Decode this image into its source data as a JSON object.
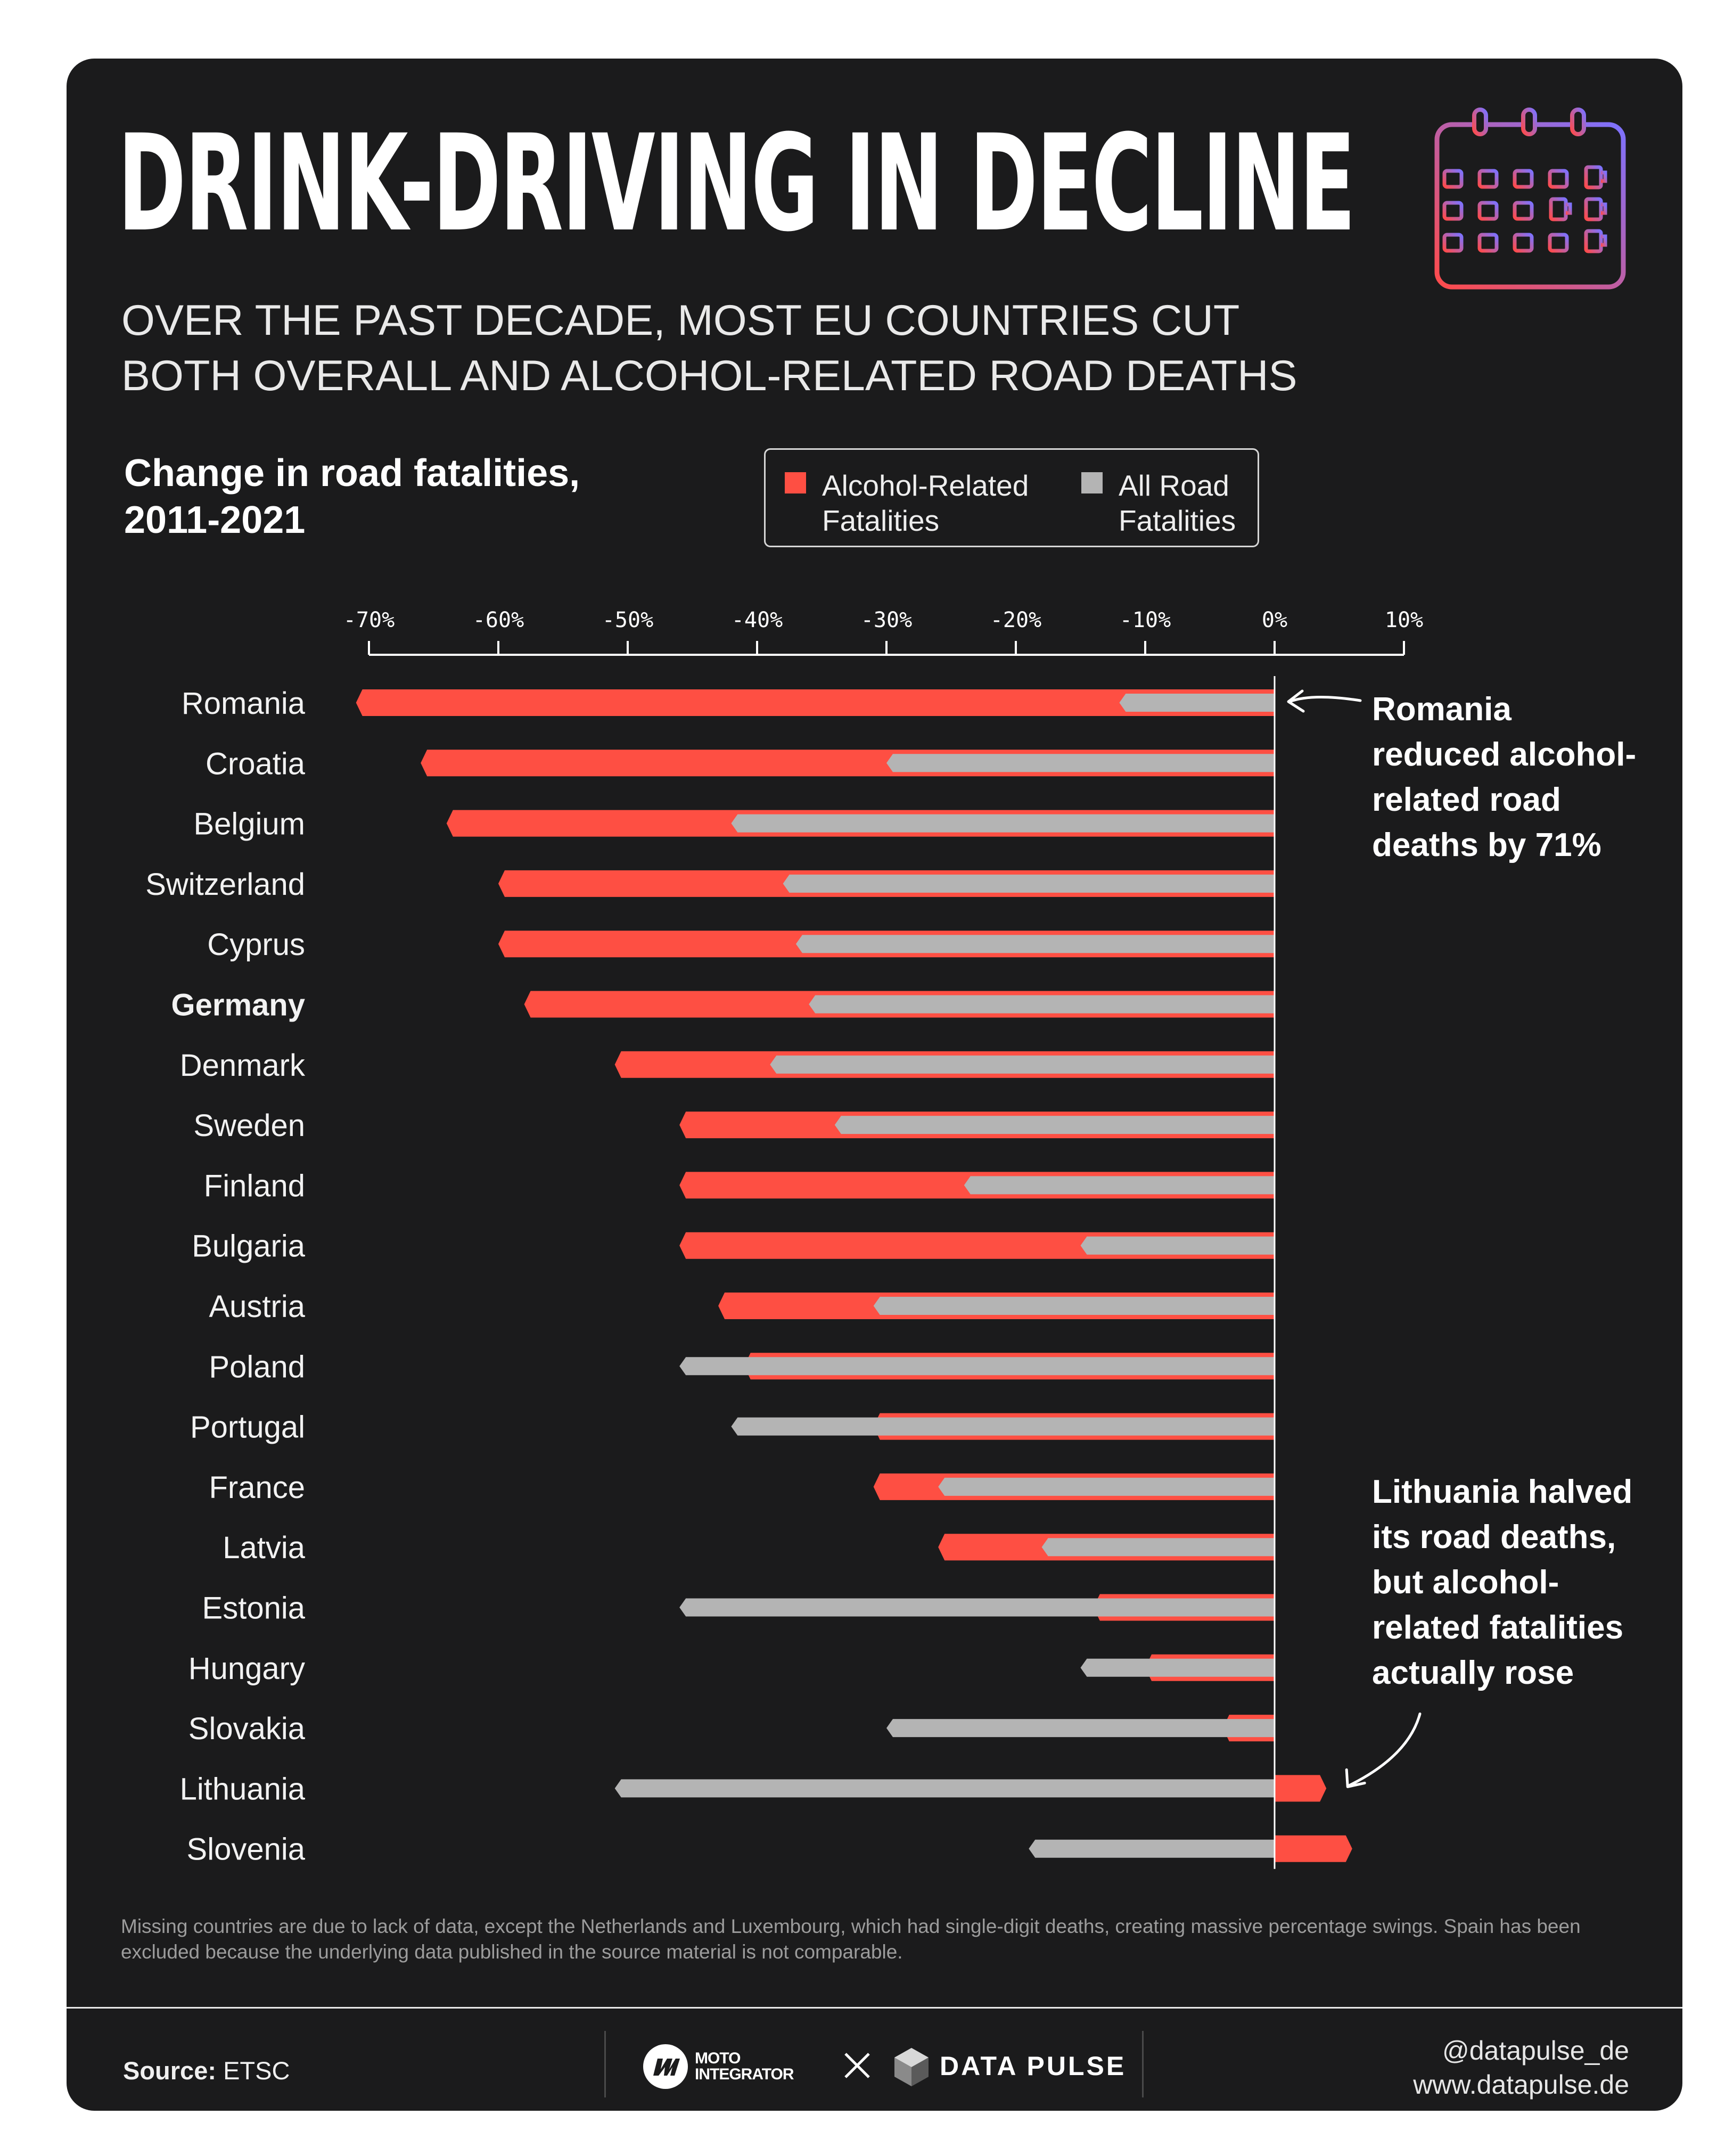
{
  "header": {
    "title": "DRINK-DRIVING IN DECLINE",
    "subtitle_line1": "OVER THE PAST DECADE, MOST EU COUNTRIES CUT",
    "subtitle_line2": "BOTH OVERALL AND ALCOHOL-RELATED ROAD DEATHS",
    "icon": "calendar-beer-icon"
  },
  "chart_title": {
    "line1": "Change in road fatalities,",
    "line2": "2011-2021"
  },
  "legend": {
    "alcohol": {
      "line1": "Alcohol-Related",
      "line2": "Fatalities",
      "color": "#fe4f43"
    },
    "all": {
      "line1": "All Road",
      "line2": "Fatalities",
      "color": "#b4b4b4"
    }
  },
  "chart_data": {
    "type": "bar",
    "orientation": "horizontal",
    "x_range": [
      -70,
      10
    ],
    "x_ticks": [
      "-70%",
      "-60%",
      "-50%",
      "-40%",
      "-30%",
      "-20%",
      "-10%",
      "0%",
      "10%"
    ],
    "x_tick_values": [
      -70,
      -60,
      -50,
      -40,
      -30,
      -20,
      -10,
      0,
      10
    ],
    "unit": "%",
    "emphasized_category": "Germany",
    "categories": [
      "Romania",
      "Croatia",
      "Belgium",
      "Switzerland",
      "Cyprus",
      "Germany",
      "Denmark",
      "Sweden",
      "Finland",
      "Bulgaria",
      "Austria",
      "Poland",
      "Portugal",
      "France",
      "Latvia",
      "Estonia",
      "Hungary",
      "Slovakia",
      "Lithuania",
      "Slovenia"
    ],
    "series": [
      {
        "name": "Alcohol-Related Fatalities",
        "color": "#fe4f43",
        "values": [
          -71,
          -66,
          -64,
          -60,
          -60,
          -58,
          -51,
          -46,
          -46,
          -46,
          -43,
          -41,
          -31,
          -31,
          -26,
          -14,
          -10,
          -4,
          4,
          6
        ]
      },
      {
        "name": "All Road Fatalities",
        "color": "#b4b4b4",
        "values": [
          -12,
          -30,
          -42,
          -38,
          -37,
          -36,
          -39,
          -34,
          -24,
          -15,
          -31,
          -46,
          -42,
          -26,
          -18,
          -46,
          -15,
          -30,
          -51,
          -19
        ]
      }
    ],
    "annotations": [
      {
        "target": "Romania",
        "text_lines": [
          "Romania",
          "reduced alcohol-",
          "related road",
          "deaths by 71%"
        ]
      },
      {
        "target": "Lithuania",
        "text_lines": [
          "Lithuania halved",
          "its road deaths,",
          "but alcohol-",
          "related fatalities",
          "actually rose"
        ]
      }
    ]
  },
  "footnote": "Missing countries are due to lack of data, except the Netherlands and Luxembourg, which had single-digit deaths, creating massive percentage swings. Spain has been excluded because the underlying data published in the source material is not comparable.",
  "footer": {
    "source_label": "Source:",
    "source_value": "ETSC",
    "brand1_line1": "MOTO",
    "brand1_line2": "INTEGRATOR",
    "brand1_icon": "moto-integrator-logo-icon",
    "separator": "×",
    "brand2": "DATA PULSE",
    "brand2_icon": "data-pulse-logo-icon",
    "handle": "@datapulse_de",
    "website": "www.datapulse.de"
  }
}
